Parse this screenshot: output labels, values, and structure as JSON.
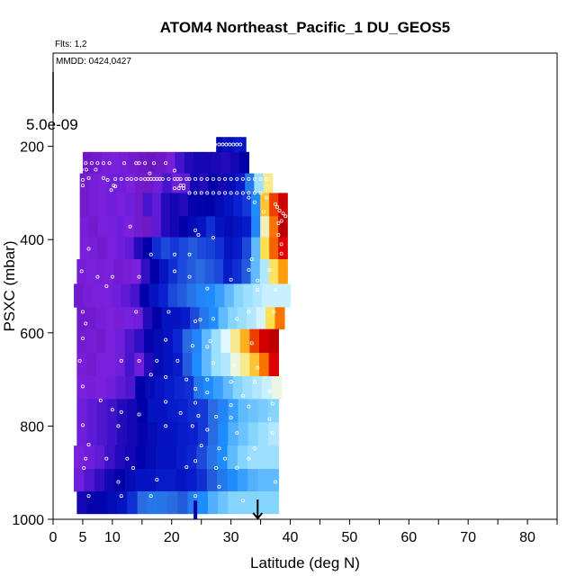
{
  "chart_data": {
    "type": "heatmap",
    "title": "ATOM4 Northeast_Pacific_1 DU_GEOS5",
    "flights_note": "Flts: 1,2",
    "date_note": "MMDD: 0424,0427",
    "scale_value_label": "5.0e-09",
    "xlabel": "Latitude (deg N)",
    "ylabel": "PSXC (mbar)",
    "xlim": [
      0,
      85
    ],
    "ylim": [
      1000,
      0
    ],
    "x_ticks": [
      0,
      5,
      10,
      20,
      30,
      40,
      50,
      60,
      70,
      80
    ],
    "y_ticks": [
      200,
      400,
      600,
      800,
      1000
    ],
    "arrow_latitude": 34.5,
    "colormap": [
      "#5a0aa0",
      "#7c22e0",
      "#3a10c8",
      "#0000a8",
      "#0a20d0",
      "#2a6ae0",
      "#1e8cff",
      "#8ad8ff",
      "#e8fbff",
      "#ffe050",
      "#ff9000",
      "#e00000",
      "#b00000"
    ],
    "value_range": [
      0,
      1
    ],
    "layers": [
      {
        "p_top": 180,
        "p_bot": 212,
        "lat_start": 27.5,
        "lat_end": 32.5,
        "values": [
          0.25,
          0.3,
          0.28,
          0.32,
          0.3
        ]
      },
      {
        "p_top": 212,
        "p_bot": 258,
        "lat_start": 5.0,
        "lat_end": 33.0,
        "values": [
          0.05,
          0.06,
          0.07,
          0.08,
          0.07,
          0.06,
          0.05,
          0.04,
          0.05,
          0.07,
          0.15,
          0.2,
          0.22,
          0.22,
          0.21,
          0.2,
          0.22,
          0.25
        ]
      },
      {
        "p_top": 258,
        "p_bot": 300,
        "lat_start": 4.5,
        "lat_end": 37.0,
        "values": [
          0.06,
          0.07,
          0.08,
          0.1,
          0.1,
          0.08,
          0.06,
          0.05,
          0.1,
          0.15,
          0.1,
          0.12,
          0.22,
          0.2,
          0.25,
          0.22,
          0.28,
          0.32,
          0.45,
          0.6,
          0.72
        ]
      },
      {
        "p_top": 300,
        "p_bot": 350,
        "lat_start": 4.5,
        "lat_end": 39.5,
        "values": [
          0.06,
          0.07,
          0.08,
          0.1,
          0.08,
          0.1,
          0.06,
          0.15,
          0.12,
          0.2,
          0.22,
          0.2,
          0.24,
          0.26,
          0.25,
          0.28,
          0.3,
          0.33,
          0.36,
          0.5,
          0.78,
          0.88,
          0.95
        ]
      },
      {
        "p_top": 350,
        "p_bot": 395,
        "lat_start": 4.5,
        "lat_end": 39.5,
        "values": [
          0.07,
          0.06,
          0.08,
          0.09,
          0.1,
          0.08,
          0.06,
          0.05,
          0.12,
          0.2,
          0.22,
          0.25,
          0.28,
          0.3,
          0.35,
          0.3,
          0.28,
          0.3,
          0.32,
          0.48,
          0.7,
          0.85,
          0.98
        ]
      },
      {
        "p_top": 395,
        "p_bot": 442,
        "lat_start": 4.5,
        "lat_end": 39.5,
        "values": [
          0.08,
          0.07,
          0.06,
          0.08,
          0.1,
          0.12,
          0.2,
          0.25,
          0.35,
          0.38,
          0.36,
          0.38,
          0.4,
          0.38,
          0.37,
          0.35,
          0.3,
          0.32,
          0.38,
          0.55,
          0.75,
          0.86,
          0.92
        ]
      },
      {
        "p_top": 442,
        "p_bot": 495,
        "lat_start": 4.0,
        "lat_end": 39.5,
        "values": [
          0.07,
          0.08,
          0.07,
          0.08,
          0.06,
          0.07,
          0.08,
          0.18,
          0.25,
          0.3,
          0.35,
          0.38,
          0.4,
          0.42,
          0.4,
          0.38,
          0.32,
          0.35,
          0.4,
          0.55,
          0.62,
          0.74,
          0.82
        ]
      },
      {
        "p_top": 495,
        "p_bot": 545,
        "lat_start": 3.5,
        "lat_end": 40.0,
        "values": [
          0.06,
          0.07,
          0.08,
          0.08,
          0.1,
          0.12,
          0.15,
          0.25,
          0.3,
          0.33,
          0.38,
          0.4,
          0.44,
          0.48,
          0.5,
          0.52,
          0.55,
          0.58,
          0.6,
          0.62,
          0.64,
          0.64,
          0.64
        ]
      },
      {
        "p_top": 545,
        "p_bot": 592,
        "lat_start": 4.0,
        "lat_end": 39.0,
        "values": [
          0.06,
          0.06,
          0.07,
          0.08,
          0.07,
          0.09,
          0.1,
          0.2,
          0.25,
          0.3,
          0.3,
          0.32,
          0.38,
          0.45,
          0.5,
          0.55,
          0.58,
          0.6,
          0.62,
          0.65,
          0.75,
          0.85
        ]
      },
      {
        "p_top": 592,
        "p_bot": 643,
        "lat_start": 4.0,
        "lat_end": 38.0,
        "values": [
          0.06,
          0.07,
          0.06,
          0.08,
          0.1,
          0.14,
          0.18,
          0.24,
          0.28,
          0.3,
          0.34,
          0.42,
          0.48,
          0.55,
          0.6,
          0.66,
          0.72,
          0.8,
          0.88,
          0.94,
          0.98
        ]
      },
      {
        "p_top": 643,
        "p_bot": 693,
        "lat_start": 4.0,
        "lat_end": 38.0,
        "values": [
          0.07,
          0.06,
          0.08,
          0.08,
          0.1,
          0.15,
          0.1,
          0.2,
          0.28,
          0.3,
          0.32,
          0.4,
          0.5,
          0.55,
          0.6,
          0.62,
          0.68,
          0.72,
          0.78,
          0.85,
          0.92
        ]
      },
      {
        "p_top": 693,
        "p_bot": 742,
        "lat_start": 4.0,
        "lat_end": 38.5,
        "values": [
          0.08,
          0.07,
          0.08,
          0.1,
          0.12,
          0.14,
          0.25,
          0.28,
          0.3,
          0.32,
          0.34,
          0.35,
          0.45,
          0.5,
          0.52,
          0.55,
          0.58,
          0.6,
          0.62,
          0.64,
          0.68
        ]
      },
      {
        "p_top": 742,
        "p_bot": 792,
        "lat_start": 4.0,
        "lat_end": 38.0,
        "values": [
          0.1,
          0.12,
          0.14,
          0.16,
          0.2,
          0.22,
          0.25,
          0.3,
          0.3,
          0.32,
          0.33,
          0.35,
          0.36,
          0.42,
          0.48,
          0.52,
          0.55,
          0.56,
          0.57,
          0.58
        ]
      },
      {
        "p_top": 792,
        "p_bot": 842,
        "lat_start": 4.0,
        "lat_end": 38.0,
        "values": [
          0.1,
          0.12,
          0.14,
          0.16,
          0.2,
          0.22,
          0.24,
          0.28,
          0.3,
          0.3,
          0.32,
          0.33,
          0.36,
          0.42,
          0.5,
          0.54,
          0.56,
          0.58,
          0.6,
          0.62
        ]
      },
      {
        "p_top": 842,
        "p_bot": 892,
        "lat_start": 3.5,
        "lat_end": 38.0,
        "values": [
          0.08,
          0.1,
          0.12,
          0.16,
          0.2,
          0.22,
          0.26,
          0.28,
          0.3,
          0.3,
          0.32,
          0.34,
          0.38,
          0.44,
          0.5,
          0.55,
          0.58,
          0.6,
          0.6,
          0.6
        ]
      },
      {
        "p_top": 892,
        "p_bot": 940,
        "lat_start": 3.5,
        "lat_end": 38.0,
        "values": [
          0.1,
          0.14,
          0.18,
          0.22,
          0.25,
          0.28,
          0.3,
          0.3,
          0.32,
          0.32,
          0.3,
          0.32,
          0.35,
          0.4,
          0.45,
          0.5,
          0.52,
          0.54,
          0.55,
          0.55
        ]
      },
      {
        "p_top": 940,
        "p_bot": 988,
        "lat_start": 4.0,
        "lat_end": 38.0,
        "values": [
          0.22,
          0.24,
          0.26,
          0.28,
          0.3,
          0.35,
          0.42,
          0.45,
          0.44,
          0.42,
          0.4,
          0.46,
          0.5,
          0.54,
          0.56,
          0.58,
          0.58,
          0.58,
          0.58,
          0.58
        ]
      }
    ],
    "points": [
      [
        27.3,
        196
      ],
      [
        28.0,
        196
      ],
      [
        28.6,
        196
      ],
      [
        29.2,
        196
      ],
      [
        29.8,
        196
      ],
      [
        30.4,
        196
      ],
      [
        31.0,
        196
      ],
      [
        31.6,
        196
      ],
      [
        5.5,
        236
      ],
      [
        6.5,
        236
      ],
      [
        7.5,
        236
      ],
      [
        8.5,
        236
      ],
      [
        9.5,
        236
      ],
      [
        12.0,
        236
      ],
      [
        14.0,
        236
      ],
      [
        14.5,
        236
      ],
      [
        15.5,
        236
      ],
      [
        17.0,
        236
      ],
      [
        19.0,
        236
      ],
      [
        4.8,
        250
      ],
      [
        5.6,
        250
      ],
      [
        7.2,
        250
      ],
      [
        16.3,
        258
      ],
      [
        20.5,
        252
      ],
      [
        5.0,
        272
      ],
      [
        6.0,
        268
      ],
      [
        8.5,
        268
      ],
      [
        9.2,
        272
      ],
      [
        10.5,
        270
      ],
      [
        11.5,
        270
      ],
      [
        12.5,
        270
      ],
      [
        13.2,
        270
      ],
      [
        14.0,
        270
      ],
      [
        14.8,
        270
      ],
      [
        15.5,
        270
      ],
      [
        16.0,
        270
      ],
      [
        16.5,
        270
      ],
      [
        17.0,
        270
      ],
      [
        17.5,
        270
      ],
      [
        18.0,
        270
      ],
      [
        18.5,
        270
      ],
      [
        19.5,
        270
      ],
      [
        20.5,
        270
      ],
      [
        21.0,
        270
      ],
      [
        21.5,
        270
      ],
      [
        22.5,
        270
      ],
      [
        23.0,
        270
      ],
      [
        24.0,
        270
      ],
      [
        25.0,
        270
      ],
      [
        26.0,
        270
      ],
      [
        27.0,
        270
      ],
      [
        28.0,
        270
      ],
      [
        29.0,
        270
      ],
      [
        30.0,
        270
      ],
      [
        31.0,
        270
      ],
      [
        32.0,
        270
      ],
      [
        33.0,
        270
      ],
      [
        34.0,
        270
      ],
      [
        35.0,
        270
      ],
      [
        36.0,
        270
      ],
      [
        5.0,
        284
      ],
      [
        10.2,
        284
      ],
      [
        21.5,
        284
      ],
      [
        22.0,
        284
      ],
      [
        20.5,
        290
      ],
      [
        21.2,
        290
      ],
      [
        22.0,
        290
      ],
      [
        23.0,
        300
      ],
      [
        24.0,
        300
      ],
      [
        25.0,
        300
      ],
      [
        26.0,
        300
      ],
      [
        27.0,
        300
      ],
      [
        28.0,
        300
      ],
      [
        29.0,
        300
      ],
      [
        30.0,
        300
      ],
      [
        31.0,
        300
      ],
      [
        32.0,
        300
      ],
      [
        33.0,
        300
      ],
      [
        34.0,
        300
      ],
      [
        35.0,
        300
      ],
      [
        9.8,
        294
      ],
      [
        10.5,
        286
      ],
      [
        33.0,
        310
      ],
      [
        36.0,
        310
      ],
      [
        34.0,
        320
      ],
      [
        37.5,
        324
      ],
      [
        37.8,
        330
      ],
      [
        38.2,
        338
      ],
      [
        38.8,
        344
      ],
      [
        39.2,
        350
      ],
      [
        38.5,
        360
      ],
      [
        35.5,
        340
      ],
      [
        38.0,
        365
      ],
      [
        13.0,
        372
      ],
      [
        24.0,
        380
      ],
      [
        24.5,
        390
      ],
      [
        27.0,
        396
      ],
      [
        38.0,
        390
      ],
      [
        38.5,
        410
      ],
      [
        6.0,
        420
      ],
      [
        16.5,
        432
      ],
      [
        20.5,
        432
      ],
      [
        23.0,
        432
      ],
      [
        33.5,
        442
      ],
      [
        38.5,
        430
      ],
      [
        4.8,
        468
      ],
      [
        20.5,
        468
      ],
      [
        33.0,
        465
      ],
      [
        36.5,
        465
      ],
      [
        7.5,
        480
      ],
      [
        10.0,
        480
      ],
      [
        14.5,
        480
      ],
      [
        23.0,
        480
      ],
      [
        30.0,
        486
      ],
      [
        34.5,
        488
      ],
      [
        9.0,
        500
      ],
      [
        26.0,
        505
      ],
      [
        34.5,
        508
      ],
      [
        37.5,
        508
      ],
      [
        5.0,
        555
      ],
      [
        14.0,
        555
      ],
      [
        19.5,
        555
      ],
      [
        33.0,
        555
      ],
      [
        37.2,
        555
      ],
      [
        5.5,
        580
      ],
      [
        24.0,
        575
      ],
      [
        24.8,
        572
      ],
      [
        27.0,
        570
      ],
      [
        31.0,
        570
      ],
      [
        5.0,
        612
      ],
      [
        19.0,
        615
      ],
      [
        26.5,
        618
      ],
      [
        33.5,
        622
      ],
      [
        23.5,
        628
      ],
      [
        26.0,
        630
      ],
      [
        4.5,
        660
      ],
      [
        11.5,
        660
      ],
      [
        14.5,
        660
      ],
      [
        17.5,
        660
      ],
      [
        21.0,
        660
      ],
      [
        27.0,
        665
      ],
      [
        30.5,
        670
      ],
      [
        34.5,
        675
      ],
      [
        16.5,
        690
      ],
      [
        19.0,
        695
      ],
      [
        22.5,
        700
      ],
      [
        26.0,
        700
      ],
      [
        30.0,
        705
      ],
      [
        34.0,
        705
      ],
      [
        5.0,
        715
      ],
      [
        24.0,
        720
      ],
      [
        26.0,
        728
      ],
      [
        32.0,
        735
      ],
      [
        36.5,
        725
      ],
      [
        8.0,
        745
      ],
      [
        19.0,
        748
      ],
      [
        24.0,
        750
      ],
      [
        30.0,
        755
      ],
      [
        33.0,
        758
      ],
      [
        37.0,
        752
      ],
      [
        10.0,
        765
      ],
      [
        11.5,
        770
      ],
      [
        14.5,
        775
      ],
      [
        21.5,
        772
      ],
      [
        24.5,
        778
      ],
      [
        27.5,
        780
      ],
      [
        30.0,
        782
      ],
      [
        36.5,
        785
      ],
      [
        5.0,
        798
      ],
      [
        11.0,
        800
      ],
      [
        19.0,
        800
      ],
      [
        23.5,
        800
      ],
      [
        26.0,
        808
      ],
      [
        31.0,
        815
      ],
      [
        37.0,
        815
      ],
      [
        6.0,
        840
      ],
      [
        25.0,
        842
      ],
      [
        28.0,
        848
      ],
      [
        34.0,
        848
      ],
      [
        5.5,
        870
      ],
      [
        9.0,
        870
      ],
      [
        12.5,
        870
      ],
      [
        24.0,
        875
      ],
      [
        29.0,
        870
      ],
      [
        33.0,
        870
      ],
      [
        5.2,
        890
      ],
      [
        13.5,
        890
      ],
      [
        22.5,
        888
      ],
      [
        27.5,
        890
      ],
      [
        31.0,
        890
      ],
      [
        11.0,
        920
      ],
      [
        17.5,
        915
      ],
      [
        28.0,
        930
      ],
      [
        37.5,
        920
      ],
      [
        6.0,
        950
      ],
      [
        11.5,
        950
      ],
      [
        16.5,
        950
      ],
      [
        24.0,
        950
      ],
      [
        32.0,
        960
      ]
    ]
  }
}
